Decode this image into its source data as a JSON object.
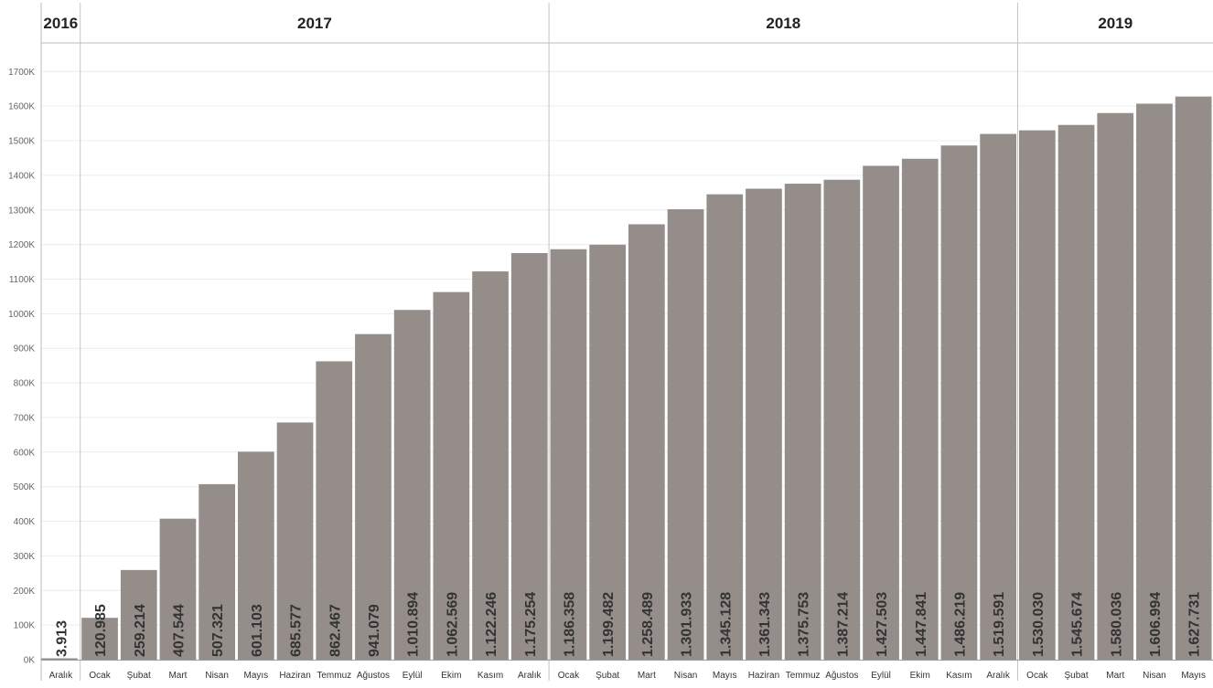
{
  "chart_data": {
    "type": "bar",
    "title": "",
    "xlabel": "",
    "ylabel": "",
    "ylim": [
      0,
      1780000
    ],
    "yticks": [
      0,
      100000,
      200000,
      300000,
      400000,
      500000,
      600000,
      700000,
      800000,
      900000,
      1000000,
      1100000,
      1200000,
      1300000,
      1400000,
      1500000,
      1600000,
      1700000
    ],
    "ytick_labels": [
      "0K",
      "100K",
      "200K",
      "300K",
      "400K",
      "500K",
      "600K",
      "700K",
      "800K",
      "900K",
      "1000K",
      "1100K",
      "1200K",
      "1300K",
      "1400K",
      "1500K",
      "1600K",
      "1700K"
    ],
    "grid": true,
    "bar_color": "#958d89",
    "year_groups": [
      {
        "year": "2016",
        "count": 1
      },
      {
        "year": "2017",
        "count": 12
      },
      {
        "year": "2018",
        "count": 12
      },
      {
        "year": "2019",
        "count": 5
      }
    ],
    "categories": [
      "Aralık",
      "Ocak",
      "Şubat",
      "Mart",
      "Nisan",
      "Mayıs",
      "Haziran",
      "Temmuz",
      "Ağustos",
      "Eylül",
      "Ekim",
      "Kasım",
      "Aralık",
      "Ocak",
      "Şubat",
      "Mart",
      "Nisan",
      "Mayıs",
      "Haziran",
      "Temmuz",
      "Ağustos",
      "Eylül",
      "Ekim",
      "Kasım",
      "Aralık",
      "Ocak",
      "Şubat",
      "Mart",
      "Nisan",
      "Mayıs"
    ],
    "values": [
      3913,
      120985,
      259214,
      407544,
      507321,
      601103,
      685577,
      862467,
      941079,
      1010894,
      1062569,
      1122246,
      1175254,
      1186358,
      1199482,
      1258489,
      1301933,
      1345128,
      1361343,
      1375753,
      1387214,
      1427503,
      1447841,
      1486219,
      1519591,
      1530030,
      1545674,
      1580036,
      1606994,
      1627731
    ],
    "value_labels": [
      "3.913",
      "120.985",
      "259.214",
      "407.544",
      "507.321",
      "601.103",
      "685.577",
      "862.467",
      "941.079",
      "1.010.894",
      "1.062.569",
      "1.122.246",
      "1.175.254",
      "1.186.358",
      "1.199.482",
      "1.258.489",
      "1.301.933",
      "1.345.128",
      "1.361.343",
      "1.375.753",
      "1.387.214",
      "1.427.503",
      "1.447.841",
      "1.486.219",
      "1.519.591",
      "1.530.030",
      "1.545.674",
      "1.580.036",
      "1.606.994",
      "1.627.731"
    ]
  }
}
